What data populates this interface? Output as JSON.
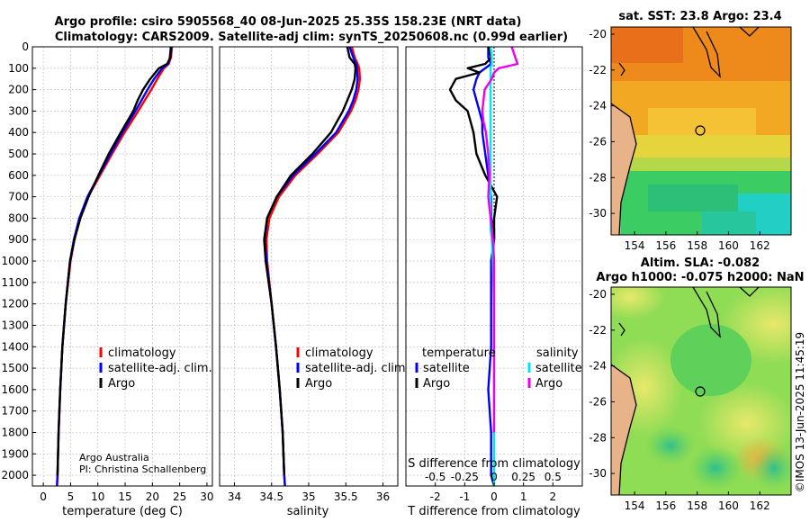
{
  "titles": {
    "line1": "Argo profile: csiro 5905568_40 08-Jun-2025 25.35S 158.23E (NRT data)",
    "line2": "Climatology: CARS2009. Satellite-adj clim: synTS_20250608.nc (0.99d earlier)",
    "sst_map": "sat. SST: 23.8 Argo: 23.4",
    "sla_map_1": "Altim. SLA: -0.082",
    "sla_map_2": "Argo h1000: -0.075 h2000: NaN"
  },
  "credits": {
    "argo_australia": "Argo Australia",
    "pi": "PI: Christina Schallenberg",
    "imos": "©IMOS 13-Jun-2025 11:45:19"
  },
  "legends": {
    "climatology": "climatology",
    "satellite_adj": "satellite-adj. clim.",
    "argo": "Argo",
    "temperature": "temperature",
    "salinity": "salinity",
    "satellite": "satellite"
  },
  "colors": {
    "climatology": "#ff0000",
    "satellite_adj": "#0000ff",
    "argo": "#000000",
    "temp_satellite": "#0000ff",
    "temp_argo": "#000000",
    "sal_satellite": "#00e5ee",
    "sal_argo": "#ee00ee"
  },
  "chart_data": [
    {
      "type": "line",
      "title": "",
      "xlabel": "temperature (deg C)",
      "ylabel": "",
      "xlim": [
        -2,
        31
      ],
      "ylim": [
        2050,
        0
      ],
      "xticks": [
        "0",
        "5",
        "10",
        "15",
        "20",
        "25",
        "30"
      ],
      "yticks": [
        "0",
        "100",
        "200",
        "300",
        "400",
        "500",
        "600",
        "700",
        "800",
        "900",
        "1000",
        "1100",
        "1200",
        "1300",
        "1400",
        "1500",
        "1600",
        "1700",
        "1800",
        "1900",
        "2000"
      ],
      "depth": [
        0,
        50,
        80,
        100,
        150,
        200,
        250,
        300,
        400,
        500,
        600,
        700,
        800,
        900,
        1000,
        1200,
        1400,
        1600,
        1800,
        2000,
        2050
      ],
      "series": [
        {
          "name": "climatology",
          "values": [
            23.6,
            23.4,
            23.0,
            22.1,
            20.9,
            19.8,
            18.6,
            17.4,
            14.9,
            12.6,
            10.4,
            8.2,
            6.7,
            5.7,
            5.0,
            4.1,
            3.5,
            3.1,
            2.8,
            2.6,
            2.5
          ]
        },
        {
          "name": "satellite-adj. clim.",
          "values": [
            23.4,
            23.2,
            22.9,
            21.8,
            20.3,
            19.1,
            18.0,
            16.9,
            14.5,
            12.3,
            10.2,
            8.1,
            6.6,
            5.6,
            4.9,
            4.1,
            3.5,
            3.1,
            2.8,
            2.6,
            2.5
          ]
        },
        {
          "name": "Argo",
          "values": [
            23.4,
            23.3,
            22.7,
            21.2,
            19.6,
            18.3,
            17.3,
            16.5,
            14.2,
            12.0,
            10.1,
            8.3,
            6.8,
            5.7,
            4.9,
            4.1,
            3.5,
            3.1,
            2.8,
            2.6,
            null
          ]
        }
      ]
    },
    {
      "type": "line",
      "title": "",
      "xlabel": "salinity",
      "ylabel": "",
      "xlim": [
        33.8,
        36.2
      ],
      "ylim": [
        2050,
        0
      ],
      "xticks": [
        "34",
        "34.5",
        "35",
        "35.5",
        "36"
      ],
      "depth": [
        0,
        50,
        80,
        100,
        150,
        200,
        250,
        300,
        400,
        500,
        600,
        700,
        800,
        900,
        1000,
        1200,
        1400,
        1600,
        1800,
        2000,
        2050
      ],
      "series": [
        {
          "name": "climatology",
          "values": [
            35.58,
            35.62,
            35.66,
            35.68,
            35.69,
            35.67,
            35.63,
            35.57,
            35.4,
            35.12,
            34.82,
            34.6,
            34.47,
            34.43,
            34.44,
            34.5,
            34.56,
            34.61,
            34.65,
            34.67,
            34.68
          ]
        },
        {
          "name": "satellite-adj. clim.",
          "values": [
            35.55,
            35.6,
            35.64,
            35.65,
            35.66,
            35.64,
            35.6,
            35.54,
            35.37,
            35.09,
            34.79,
            34.57,
            34.44,
            34.41,
            34.43,
            34.5,
            34.56,
            34.61,
            34.65,
            34.67,
            34.68
          ]
        },
        {
          "name": "Argo",
          "values": [
            35.52,
            35.55,
            35.62,
            35.63,
            35.62,
            35.58,
            35.52,
            35.46,
            35.3,
            35.05,
            34.76,
            34.57,
            34.44,
            34.4,
            34.42,
            34.5,
            34.56,
            34.61,
            34.65,
            34.67,
            null
          ]
        }
      ]
    },
    {
      "type": "line",
      "title": "",
      "xlabel": "T difference from climatology",
      "x2label": "S difference from climatology",
      "ylabel": "",
      "xlim": [
        -3,
        3
      ],
      "ylim": [
        2050,
        0
      ],
      "xticks": [
        "-2",
        "-1",
        "0",
        "1",
        "2"
      ],
      "x2ticks": [
        "-0.5",
        "-0.25",
        "0",
        "0.25",
        "0.5"
      ],
      "depth": [
        0,
        50,
        80,
        100,
        120,
        150,
        200,
        250,
        300,
        350,
        400,
        500,
        600,
        700,
        800,
        850,
        900,
        1000,
        1200,
        1400,
        1600,
        1800,
        2000,
        2050
      ],
      "series": [
        {
          "name": "temperature satellite",
          "values": [
            -0.2,
            -0.2,
            -0.1,
            -0.3,
            -0.5,
            -0.6,
            -0.7,
            -0.6,
            -0.5,
            -0.4,
            -0.4,
            -0.3,
            -0.2,
            -0.1,
            -0.1,
            0.0,
            0.0,
            -0.1,
            -0.1,
            -0.1,
            -0.2,
            -0.1,
            -0.1,
            0.0
          ]
        },
        {
          "name": "temperature Argo",
          "values": [
            -0.2,
            -0.1,
            -0.3,
            -0.9,
            -0.5,
            -1.3,
            -1.5,
            -1.3,
            -0.9,
            -0.8,
            -0.7,
            -0.6,
            -0.3,
            0.1,
            0.0,
            0.0,
            0.0,
            null,
            null,
            null,
            null,
            null,
            null,
            null
          ]
        },
        {
          "name": "salinity satellite",
          "values": [
            -0.03,
            -0.02,
            -0.02,
            -0.03,
            -0.03,
            -0.03,
            -0.03,
            -0.03,
            -0.03,
            -0.03,
            -0.03,
            -0.03,
            -0.03,
            -0.03,
            -0.03,
            -0.03,
            -0.02,
            -0.01,
            0.0,
            0.0,
            0.0,
            0.0,
            0.0,
            0.0
          ]
        },
        {
          "name": "salinity Argo",
          "values": [
            0.15,
            0.18,
            0.2,
            0.04,
            0.0,
            -0.02,
            -0.08,
            -0.09,
            -0.1,
            -0.09,
            -0.07,
            -0.05,
            -0.04,
            -0.05,
            -0.03,
            -0.02,
            -0.01,
            0.0,
            0.0,
            0.0,
            0.0,
            0.0,
            null,
            null
          ]
        }
      ]
    },
    {
      "type": "heatmap",
      "title": "sat. SST: 23.8 Argo: 23.4",
      "xlim": [
        152.5,
        164
      ],
      "ylim": [
        -31.2,
        -19.6
      ],
      "xticks": [
        "154",
        "156",
        "158",
        "160",
        "162"
      ],
      "yticks": [
        "-20",
        "-22",
        "-24",
        "-26",
        "-28",
        "-30"
      ],
      "marker": {
        "lon": 158.23,
        "lat": -25.35
      }
    },
    {
      "type": "heatmap",
      "title": "Altim. SLA: -0.082",
      "xlim": [
        152.5,
        164
      ],
      "ylim": [
        -31.2,
        -19.6
      ],
      "xticks": [
        "154",
        "156",
        "158",
        "160",
        "162"
      ],
      "yticks": [
        "-20",
        "-22",
        "-24",
        "-26",
        "-28",
        "-30"
      ],
      "marker": {
        "lon": 158.23,
        "lat": -25.35
      }
    }
  ]
}
